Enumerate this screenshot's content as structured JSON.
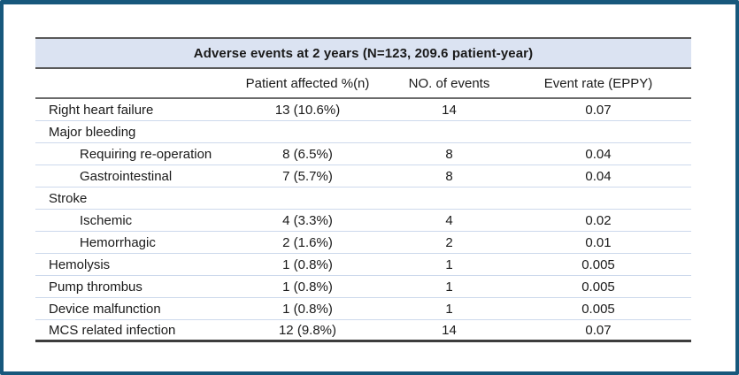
{
  "table": {
    "title": "Adverse events at 2 years (N=123, 209.6 patient-year)",
    "col_headers": {
      "affected": "Patient affected %(n)",
      "events": "NO. of events",
      "rate": "Event rate (EPPY)"
    },
    "rows": [
      {
        "label": "Right heart failure",
        "indent": false,
        "affected": "13 (10.6%)",
        "events": "14",
        "rate": "0.07"
      },
      {
        "label": "Major bleeding",
        "indent": false,
        "affected": "",
        "events": "",
        "rate": ""
      },
      {
        "label": "Requiring re-operation",
        "indent": true,
        "affected": "8 (6.5%)",
        "events": "8",
        "rate": "0.04"
      },
      {
        "label": "Gastrointestinal",
        "indent": true,
        "affected": "7 (5.7%)",
        "events": "8",
        "rate": "0.04"
      },
      {
        "label": "Stroke",
        "indent": false,
        "affected": "",
        "events": "",
        "rate": ""
      },
      {
        "label": "Ischemic",
        "indent": true,
        "affected": "4 (3.3%)",
        "events": "4",
        "rate": "0.02"
      },
      {
        "label": "Hemorrhagic",
        "indent": true,
        "affected": "2 (1.6%)",
        "events": "2",
        "rate": "0.01"
      },
      {
        "label": "Hemolysis",
        "indent": false,
        "affected": "1 (0.8%)",
        "events": "1",
        "rate": "0.005"
      },
      {
        "label": "Pump thrombus",
        "indent": false,
        "affected": "1 (0.8%)",
        "events": "1",
        "rate": "0.005"
      },
      {
        "label": "Device malfunction",
        "indent": false,
        "affected": "1 (0.8%)",
        "events": "1",
        "rate": "0.005"
      },
      {
        "label": "MCS related infection",
        "indent": false,
        "affected": "12 (9.8%)",
        "events": "14",
        "rate": "0.07"
      }
    ],
    "colors": {
      "frame": "#17587c",
      "title_band_bg": "#dbe3f2",
      "heavy_line": "#595959",
      "row_line": "#cdd9ec"
    }
  }
}
